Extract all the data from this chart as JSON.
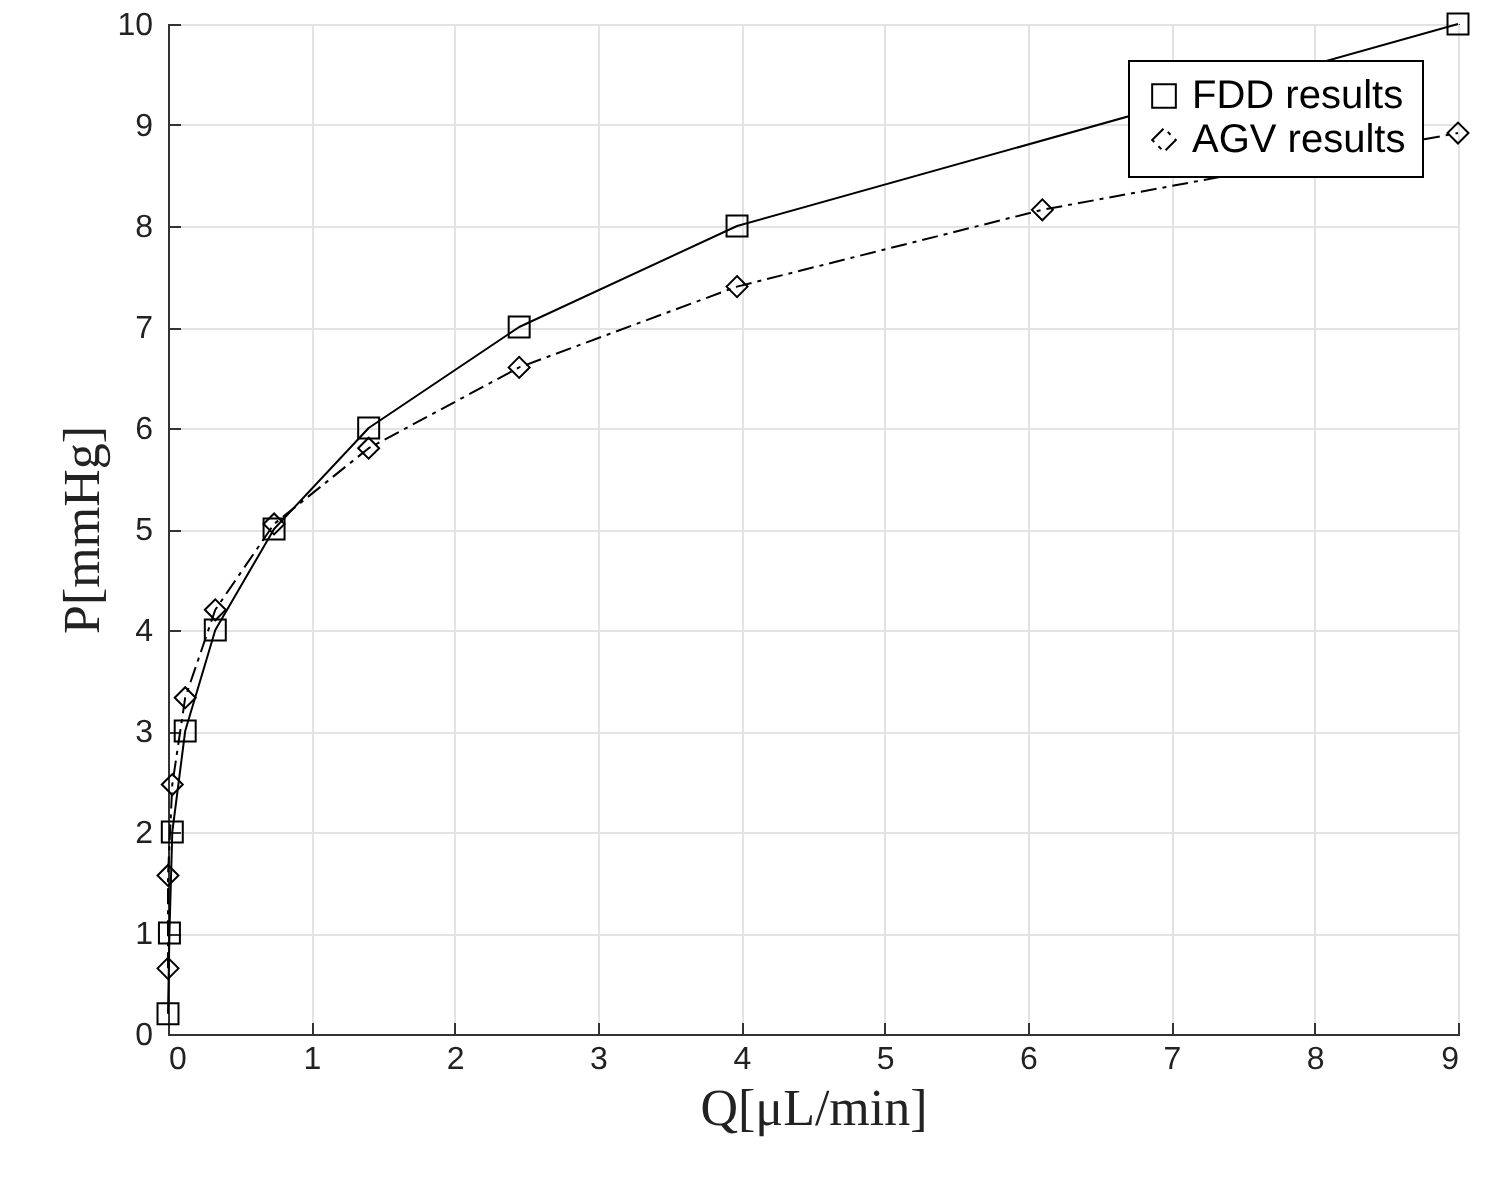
{
  "chart_data": {
    "type": "line",
    "xlabel": "Q[μL/min]",
    "ylabel": "P[mmHg]",
    "xlim": [
      0,
      9
    ],
    "xticks": [
      0,
      1,
      2,
      3,
      4,
      5,
      6,
      7,
      8,
      9
    ],
    "ylim": [
      0,
      10
    ],
    "yticks": [
      0,
      1,
      2,
      3,
      4,
      5,
      6,
      7,
      8,
      9,
      10
    ],
    "grid": true,
    "legend": "top right",
    "series": [
      {
        "name": "FDD results",
        "color": "#000000",
        "marker": "square",
        "line_style": "solid",
        "x": [
          0,
          0.01,
          0.03,
          0.12,
          0.33,
          0.74,
          1.4,
          2.45,
          3.97,
          9
        ],
        "values": [
          0.2,
          1,
          2,
          3,
          4,
          5,
          6,
          7,
          8,
          10
        ]
      },
      {
        "name": "AGV results",
        "color": "#000000",
        "marker": "diamond",
        "line_style": "dashdot",
        "x": [
          0,
          0,
          0.03,
          0.12,
          0.33,
          0.74,
          1.4,
          2.45,
          3.97,
          6.1,
          9
        ],
        "values": [
          0.65,
          1.57,
          2.47,
          3.33,
          4.2,
          5.05,
          5.8,
          6.6,
          7.4,
          8.16,
          8.92
        ]
      }
    ]
  }
}
